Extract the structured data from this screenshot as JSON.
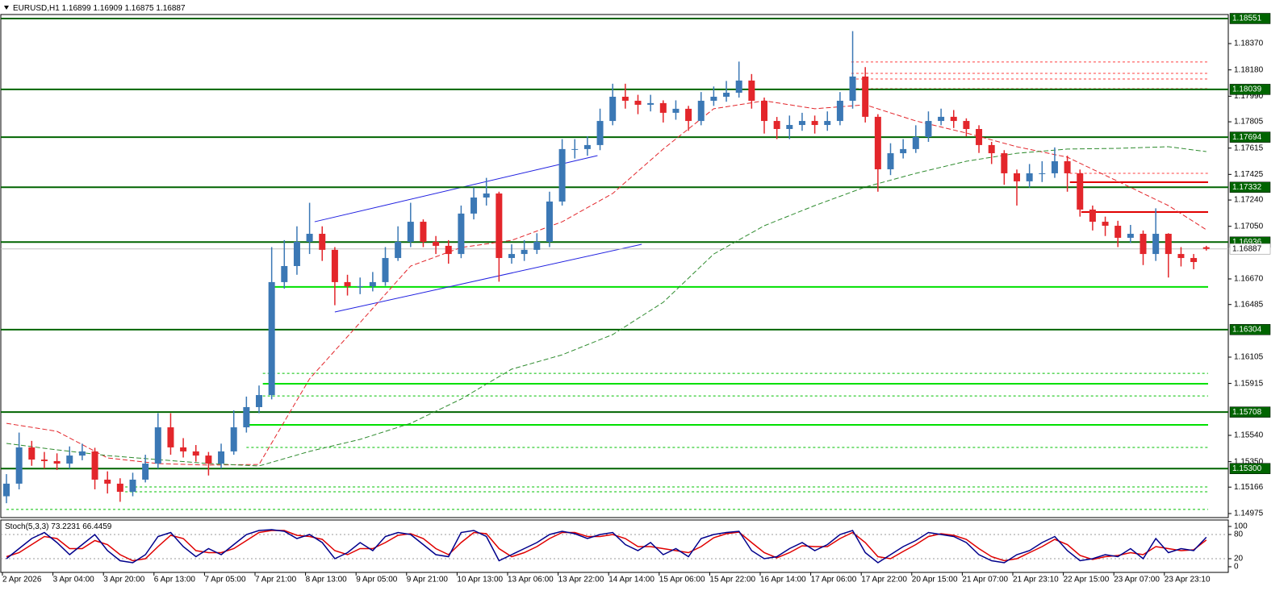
{
  "chart_data": {
    "type": "candlestick",
    "symbol": "EURUSD,H1",
    "categories": [
      "2 Apr 2026",
      null,
      null,
      null,
      "3 Apr 04:00",
      null,
      null,
      null,
      "3 Apr 20:00",
      null,
      null,
      null,
      "6 Apr 13:00",
      null,
      null,
      null,
      "7 Apr 05:00",
      null,
      null,
      null,
      "7 Apr 21:00",
      null,
      null,
      null,
      "8 Apr 13:00",
      null,
      null,
      null,
      "9 Apr 05:00",
      null,
      null,
      null,
      "9 Apr 21:00",
      null,
      null,
      null,
      "10 Apr 13:00",
      null,
      null,
      null,
      "13 Apr 06:00",
      null,
      null,
      null,
      "13 Apr 22:00",
      null,
      null,
      null,
      "14 Apr 14:00",
      null,
      null,
      null,
      "15 Apr 06:00",
      null,
      null,
      null,
      "15 Apr 22:00",
      null,
      null,
      null,
      "16 Apr 14:00",
      null,
      null,
      null,
      "17 Apr 06:00",
      null,
      null,
      null,
      "17 Apr 22:00",
      null,
      null,
      null,
      "20 Apr 15:00",
      null,
      null,
      null,
      "21 Apr 07:00",
      null,
      null,
      null,
      "21 Apr 23:10",
      null,
      null,
      null,
      "22 Apr 15:00",
      null,
      null,
      null,
      "23 Apr 07:00",
      null,
      null,
      null,
      "23 Apr 23:10",
      null,
      null,
      null
    ],
    "open": [
      1.151,
      1.15191,
      1.15453,
      1.15365,
      1.15354,
      1.15336,
      1.15394,
      1.15424,
      1.1522,
      1.15191,
      1.15132,
      1.1522,
      1.15336,
      1.15598,
      1.15453,
      1.15424,
      1.15394,
      1.15336,
      1.15424,
      1.15598,
      1.15744,
      1.15831,
      1.16647,
      1.16763,
      1.16938,
      1.16996,
      1.1688,
      1.16647,
      1.16617,
      1.16617,
      1.16647,
      1.16821,
      1.16938,
      1.17083,
      1.16938,
      1.16909,
      1.1685,
      1.17142,
      1.17258,
      1.17287,
      1.16821,
      1.1685,
      1.1688,
      1.16938,
      1.17229,
      1.17608,
      1.17608,
      1.17637,
      1.17811,
      1.17986,
      1.17957,
      1.17928,
      1.1794,
      1.1787,
      1.17899,
      1.17811,
      1.17957,
      1.17986,
      1.18015,
      1.18103,
      1.17957,
      1.17811,
      1.17753,
      1.17782,
      1.17811,
      1.17782,
      1.17811,
      1.17957,
      1.18132,
      1.17841,
      1.17462,
      1.17578,
      1.17608,
      1.17695,
      1.17811,
      1.17841,
      1.17811,
      1.17753,
      1.17637,
      1.17578,
      1.17433,
      1.17375,
      1.17433,
      1.17433,
      1.1752,
      1.17433,
      1.17171,
      1.17083,
      1.17054,
      1.16967,
      1.16996,
      1.1685,
      1.16996,
      1.1685,
      1.16821,
      1.16899
    ],
    "high": [
      1.1526,
      1.1556,
      1.155,
      1.1542,
      1.1541,
      1.1546,
      1.1548,
      1.1545,
      1.1528,
      1.1523,
      1.1527,
      1.154,
      1.157,
      1.157,
      1.1552,
      1.1547,
      1.1542,
      1.1548,
      1.1572,
      1.1582,
      1.159,
      1.169,
      1.1695,
      1.1705,
      1.1722,
      1.1705,
      1.169,
      1.167,
      1.1668,
      1.1672,
      1.169,
      1.1705,
      1.1722,
      1.171,
      1.1698,
      1.1695,
      1.172,
      1.1733,
      1.174,
      1.173,
      1.1692,
      1.1695,
      1.17,
      1.173,
      1.1768,
      1.1768,
      1.177,
      1.179,
      1.1808,
      1.1808,
      1.18,
      1.18,
      1.1796,
      1.1796,
      1.1792,
      1.1802,
      1.1806,
      1.181,
      1.1824,
      1.1815,
      1.1798,
      1.1784,
      1.1785,
      1.1787,
      1.1785,
      1.1788,
      1.1802,
      1.1846,
      1.182,
      1.1786,
      1.1765,
      1.1768,
      1.1778,
      1.1788,
      1.179,
      1.1789,
      1.1783,
      1.1778,
      1.1766,
      1.176,
      1.1746,
      1.175,
      1.1752,
      1.1762,
      1.1756,
      1.1746,
      1.172,
      1.1712,
      1.1709,
      1.1706,
      1.1702,
      1.1718,
      1.17,
      1.169,
      1.1685,
      1.16909
    ],
    "low": [
      1.1505,
      1.1515,
      1.1532,
      1.153,
      1.1529,
      1.153,
      1.1536,
      1.1515,
      1.1512,
      1.1506,
      1.151,
      1.152,
      1.153,
      1.154,
      1.1538,
      1.1535,
      1.1525,
      1.153,
      1.154,
      1.1556,
      1.157,
      1.158,
      1.166,
      1.167,
      1.1685,
      1.168,
      1.1648,
      1.1655,
      1.1656,
      1.1658,
      1.1662,
      1.168,
      1.169,
      1.169,
      1.1685,
      1.1678,
      1.1682,
      1.171,
      1.172,
      1.1665,
      1.1678,
      1.168,
      1.1685,
      1.169,
      1.172,
      1.1754,
      1.1756,
      1.176,
      1.1778,
      1.179,
      1.1786,
      1.1788,
      1.178,
      1.1782,
      1.1774,
      1.1778,
      1.1792,
      1.1795,
      1.1798,
      1.179,
      1.1772,
      1.1768,
      1.1768,
      1.1774,
      1.1772,
      1.1774,
      1.1778,
      1.179,
      1.178,
      1.173,
      1.1742,
      1.1754,
      1.1758,
      1.1766,
      1.1778,
      1.1776,
      1.177,
      1.1758,
      1.175,
      1.1735,
      1.172,
      1.1733,
      1.1737,
      1.174,
      1.173,
      1.1712,
      1.1702,
      1.1698,
      1.169,
      1.1693,
      1.1677,
      1.168,
      1.1668,
      1.1676,
      1.1674,
      1.16875
    ],
    "close": [
      1.15191,
      1.15453,
      1.15365,
      1.15354,
      1.15336,
      1.15394,
      1.15424,
      1.1522,
      1.15191,
      1.15132,
      1.1522,
      1.15336,
      1.15598,
      1.15453,
      1.15424,
      1.15394,
      1.15336,
      1.15424,
      1.15598,
      1.15744,
      1.15831,
      1.16647,
      1.16763,
      1.16938,
      1.16996,
      1.1688,
      1.16647,
      1.16617,
      1.16617,
      1.16647,
      1.16821,
      1.16938,
      1.17083,
      1.16938,
      1.16909,
      1.1685,
      1.17142,
      1.17258,
      1.17287,
      1.16821,
      1.1685,
      1.1688,
      1.16938,
      1.17229,
      1.17608,
      1.17608,
      1.17637,
      1.17811,
      1.17986,
      1.17957,
      1.17928,
      1.1794,
      1.1787,
      1.17899,
      1.17811,
      1.17957,
      1.17986,
      1.18015,
      1.18103,
      1.17957,
      1.17811,
      1.17753,
      1.17782,
      1.17811,
      1.17782,
      1.17811,
      1.17957,
      1.18132,
      1.17841,
      1.17462,
      1.17578,
      1.17608,
      1.17695,
      1.17811,
      1.17841,
      1.17811,
      1.17753,
      1.17637,
      1.17578,
      1.17433,
      1.17375,
      1.17433,
      1.17433,
      1.1752,
      1.17433,
      1.17171,
      1.17083,
      1.17054,
      1.16967,
      1.16996,
      1.1685,
      1.16996,
      1.1685,
      1.16821,
      1.16792,
      1.16887
    ],
    "up_color": "#3b78b5",
    "down_color": "#e3262b",
    "ylim": [
      1.14946,
      1.1858
    ],
    "yticks": [
      {
        "value": 1.1837,
        "label": "1.18370"
      },
      {
        "value": 1.1818,
        "label": "1.18180"
      },
      {
        "value": 1.1799,
        "label": "1.17990"
      },
      1.17805,
      1.17615,
      1.17425,
      {
        "value": 1.1724,
        "label": "1.17240"
      },
      {
        "value": 1.1705,
        "label": "1.17050"
      },
      {
        "value": 1.1667,
        "label": "1.16670"
      },
      1.16485,
      1.16105,
      1.15915,
      {
        "value": 1.1554,
        "label": "1.15540"
      },
      {
        "value": 1.1535,
        "label": "1.15350"
      },
      1.15166,
      1.14975
    ],
    "grid": false,
    "levels": {
      "color": "#006400",
      "values": [
        1.18551,
        1.18039,
        1.17694,
        1.17332,
        1.16936,
        1.16304,
        1.15708,
        {
          "value": 1.153,
          "label": "1.15300"
        }
      ]
    },
    "moving_averages": [
      {
        "color": "#e3262b",
        "x": [
          0,
          4,
          8,
          12,
          16,
          20,
          24,
          28,
          32,
          36,
          40,
          44,
          48,
          52,
          56,
          60,
          64,
          68,
          72,
          76,
          80,
          84,
          88,
          92,
          95
        ],
        "values": [
          1.15627,
          1.15569,
          1.15377,
          1.15336,
          1.15325,
          1.1533,
          1.15948,
          1.16355,
          1.16763,
          1.16897,
          1.16949,
          1.17083,
          1.17287,
          1.17608,
          1.17899,
          1.17957,
          1.17899,
          1.17928,
          1.17811,
          1.17724,
          1.17625,
          1.17549,
          1.17375,
          1.172,
          1.17025
        ]
      },
      {
        "color": "#2e8b2e",
        "x": [
          0,
          4,
          8,
          12,
          16,
          20,
          24,
          28,
          32,
          36,
          40,
          44,
          48,
          52,
          56,
          60,
          64,
          68,
          72,
          76,
          80,
          84,
          88,
          92,
          95
        ],
        "values": [
          1.15482,
          1.15435,
          1.15394,
          1.15365,
          1.15336,
          1.15319,
          1.15424,
          1.15511,
          1.15627,
          1.15802,
          1.16018,
          1.16122,
          1.16268,
          1.16501,
          1.1685,
          1.17054,
          1.172,
          1.17334,
          1.17433,
          1.1752,
          1.17578,
          1.17608,
          1.17613,
          1.17625,
          1.1759
        ]
      }
    ],
    "zones": [
      {
        "color": "#00e000",
        "style": "solid",
        "price": 1.16612,
        "from": 20.9
      },
      {
        "color": "#00e000",
        "style": "solid",
        "price": 1.15913,
        "from": 20.3
      },
      {
        "color": "#00e000",
        "style": "solid",
        "price": 1.15616,
        "from": 19.0
      },
      {
        "color": "#00c000",
        "style": "dotted",
        "price": 1.15988,
        "from": 20.3
      },
      {
        "color": "#00c000",
        "style": "dotted",
        "price": 1.15825,
        "from": 20.3
      },
      {
        "color": "#00c000",
        "style": "dotted",
        "price": 1.15453,
        "from": 19.0
      },
      {
        "color": "#00c000",
        "style": "dotted",
        "price": 1.15167,
        "from": 9.4
      },
      {
        "color": "#00c000",
        "style": "dotted",
        "price": 1.15132,
        "from": 9.4
      },
      {
        "color": "#00c000",
        "style": "dotted",
        "price": 1.15005,
        "from": 0
      },
      {
        "color": "#ff4040",
        "style": "dotted",
        "price": 1.18237,
        "from": 66.9
      },
      {
        "color": "#ff4040",
        "style": "dotted",
        "price": 1.18155,
        "from": 66.9
      },
      {
        "color": "#ff4040",
        "style": "dotted",
        "price": 1.18114,
        "from": 66.9
      },
      {
        "color": "#ff4040",
        "style": "dotted",
        "price": 1.18044,
        "from": 66.9
      },
      {
        "color": "#ff4040",
        "style": "dotted",
        "price": 1.17433,
        "from": 84.2
      },
      {
        "color": "#e00000",
        "style": "solid",
        "price": 1.17369,
        "from": 84.2
      },
      {
        "color": "#e00000",
        "style": "solid",
        "price": 1.17153,
        "from": 85.1
      }
    ],
    "trendlines": [
      {
        "color": "#2020e0",
        "x": [
          24.4,
          46.8
        ],
        "values": [
          1.17083,
          1.17561
        ]
      },
      {
        "color": "#2020e0",
        "x": [
          26.0,
          50.3
        ],
        "values": [
          1.16431,
          1.1692
        ]
      }
    ],
    "indicator": {
      "title": "Stoch(5,3,3)",
      "ylim": [
        0,
        100
      ],
      "yticks": [
        0,
        20,
        80,
        100
      ],
      "levels": [
        20,
        80
      ],
      "main": {
        "color": "#00008b",
        "values": [
          20,
          45,
          70,
          85,
          60,
          30,
          55,
          80,
          40,
          15,
          10,
          30,
          75,
          85,
          50,
          25,
          45,
          30,
          55,
          80,
          90,
          92,
          88,
          70,
          80,
          60,
          20,
          35,
          60,
          40,
          75,
          85,
          80,
          55,
          30,
          25,
          85,
          90,
          75,
          15,
          30,
          45,
          60,
          80,
          88,
          82,
          70,
          80,
          85,
          55,
          40,
          60,
          30,
          45,
          25,
          70,
          80,
          85,
          88,
          40,
          20,
          25,
          45,
          60,
          40,
          55,
          80,
          90,
          35,
          10,
          30,
          50,
          65,
          85,
          80,
          75,
          60,
          30,
          15,
          10,
          30,
          40,
          60,
          75,
          40,
          15,
          20,
          30,
          25,
          45,
          20,
          70,
          35,
          45,
          40,
          73.2231
        ]
      },
      "signal": {
        "color": "#e00000",
        "values": [
          25,
          35,
          55,
          75,
          70,
          45,
          45,
          65,
          55,
          30,
          15,
          20,
          50,
          78,
          70,
          40,
          35,
          35,
          45,
          65,
          85,
          90,
          90,
          78,
          75,
          68,
          40,
          30,
          45,
          45,
          60,
          78,
          82,
          70,
          45,
          30,
          60,
          85,
          82,
          45,
          25,
          35,
          50,
          70,
          85,
          85,
          75,
          75,
          80,
          70,
          50,
          50,
          45,
          40,
          35,
          50,
          72,
          82,
          86,
          60,
          35,
          22,
          35,
          52,
          50,
          50,
          70,
          85,
          60,
          25,
          20,
          38,
          55,
          75,
          82,
          78,
          68,
          45,
          25,
          15,
          20,
          35,
          50,
          68,
          55,
          28,
          18,
          25,
          28,
          35,
          30,
          50,
          45,
          40,
          42,
          66.4459
        ]
      }
    }
  }
}
